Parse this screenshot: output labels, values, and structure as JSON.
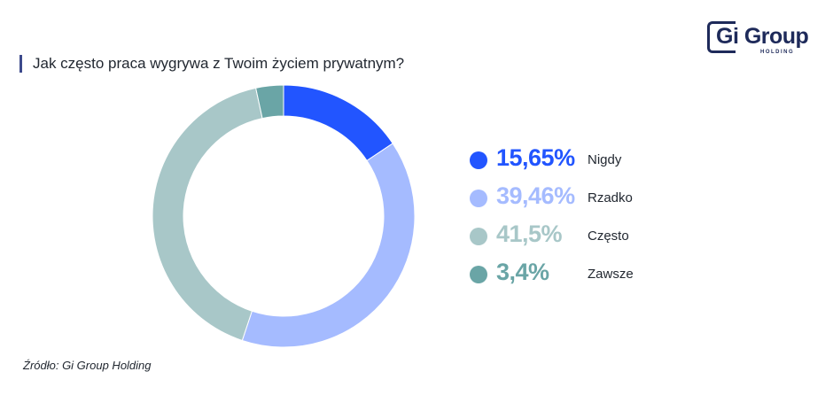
{
  "chart_data": {
    "type": "pie",
    "title": "Jak często praca wygrywa z Twoim życiem prywatnym?",
    "slices": [
      {
        "label": "Nigdy",
        "value": 15.65,
        "value_text": "15,65%",
        "color": "#2255ff"
      },
      {
        "label": "Rzadko",
        "value": 39.46,
        "value_text": "39,46%",
        "color": "#a5bbff"
      },
      {
        "label": "Często",
        "value": 41.5,
        "value_text": "41,5%",
        "color": "#a8c7c8"
      },
      {
        "label": "Zawsze",
        "value": 3.4,
        "value_text": "3,4%",
        "color": "#6aa5a6"
      }
    ],
    "legend_position": "right"
  },
  "logo": {
    "name": "Gi Group",
    "sub": "HOLDING"
  },
  "source": "Źródło: Gi Group Holding"
}
